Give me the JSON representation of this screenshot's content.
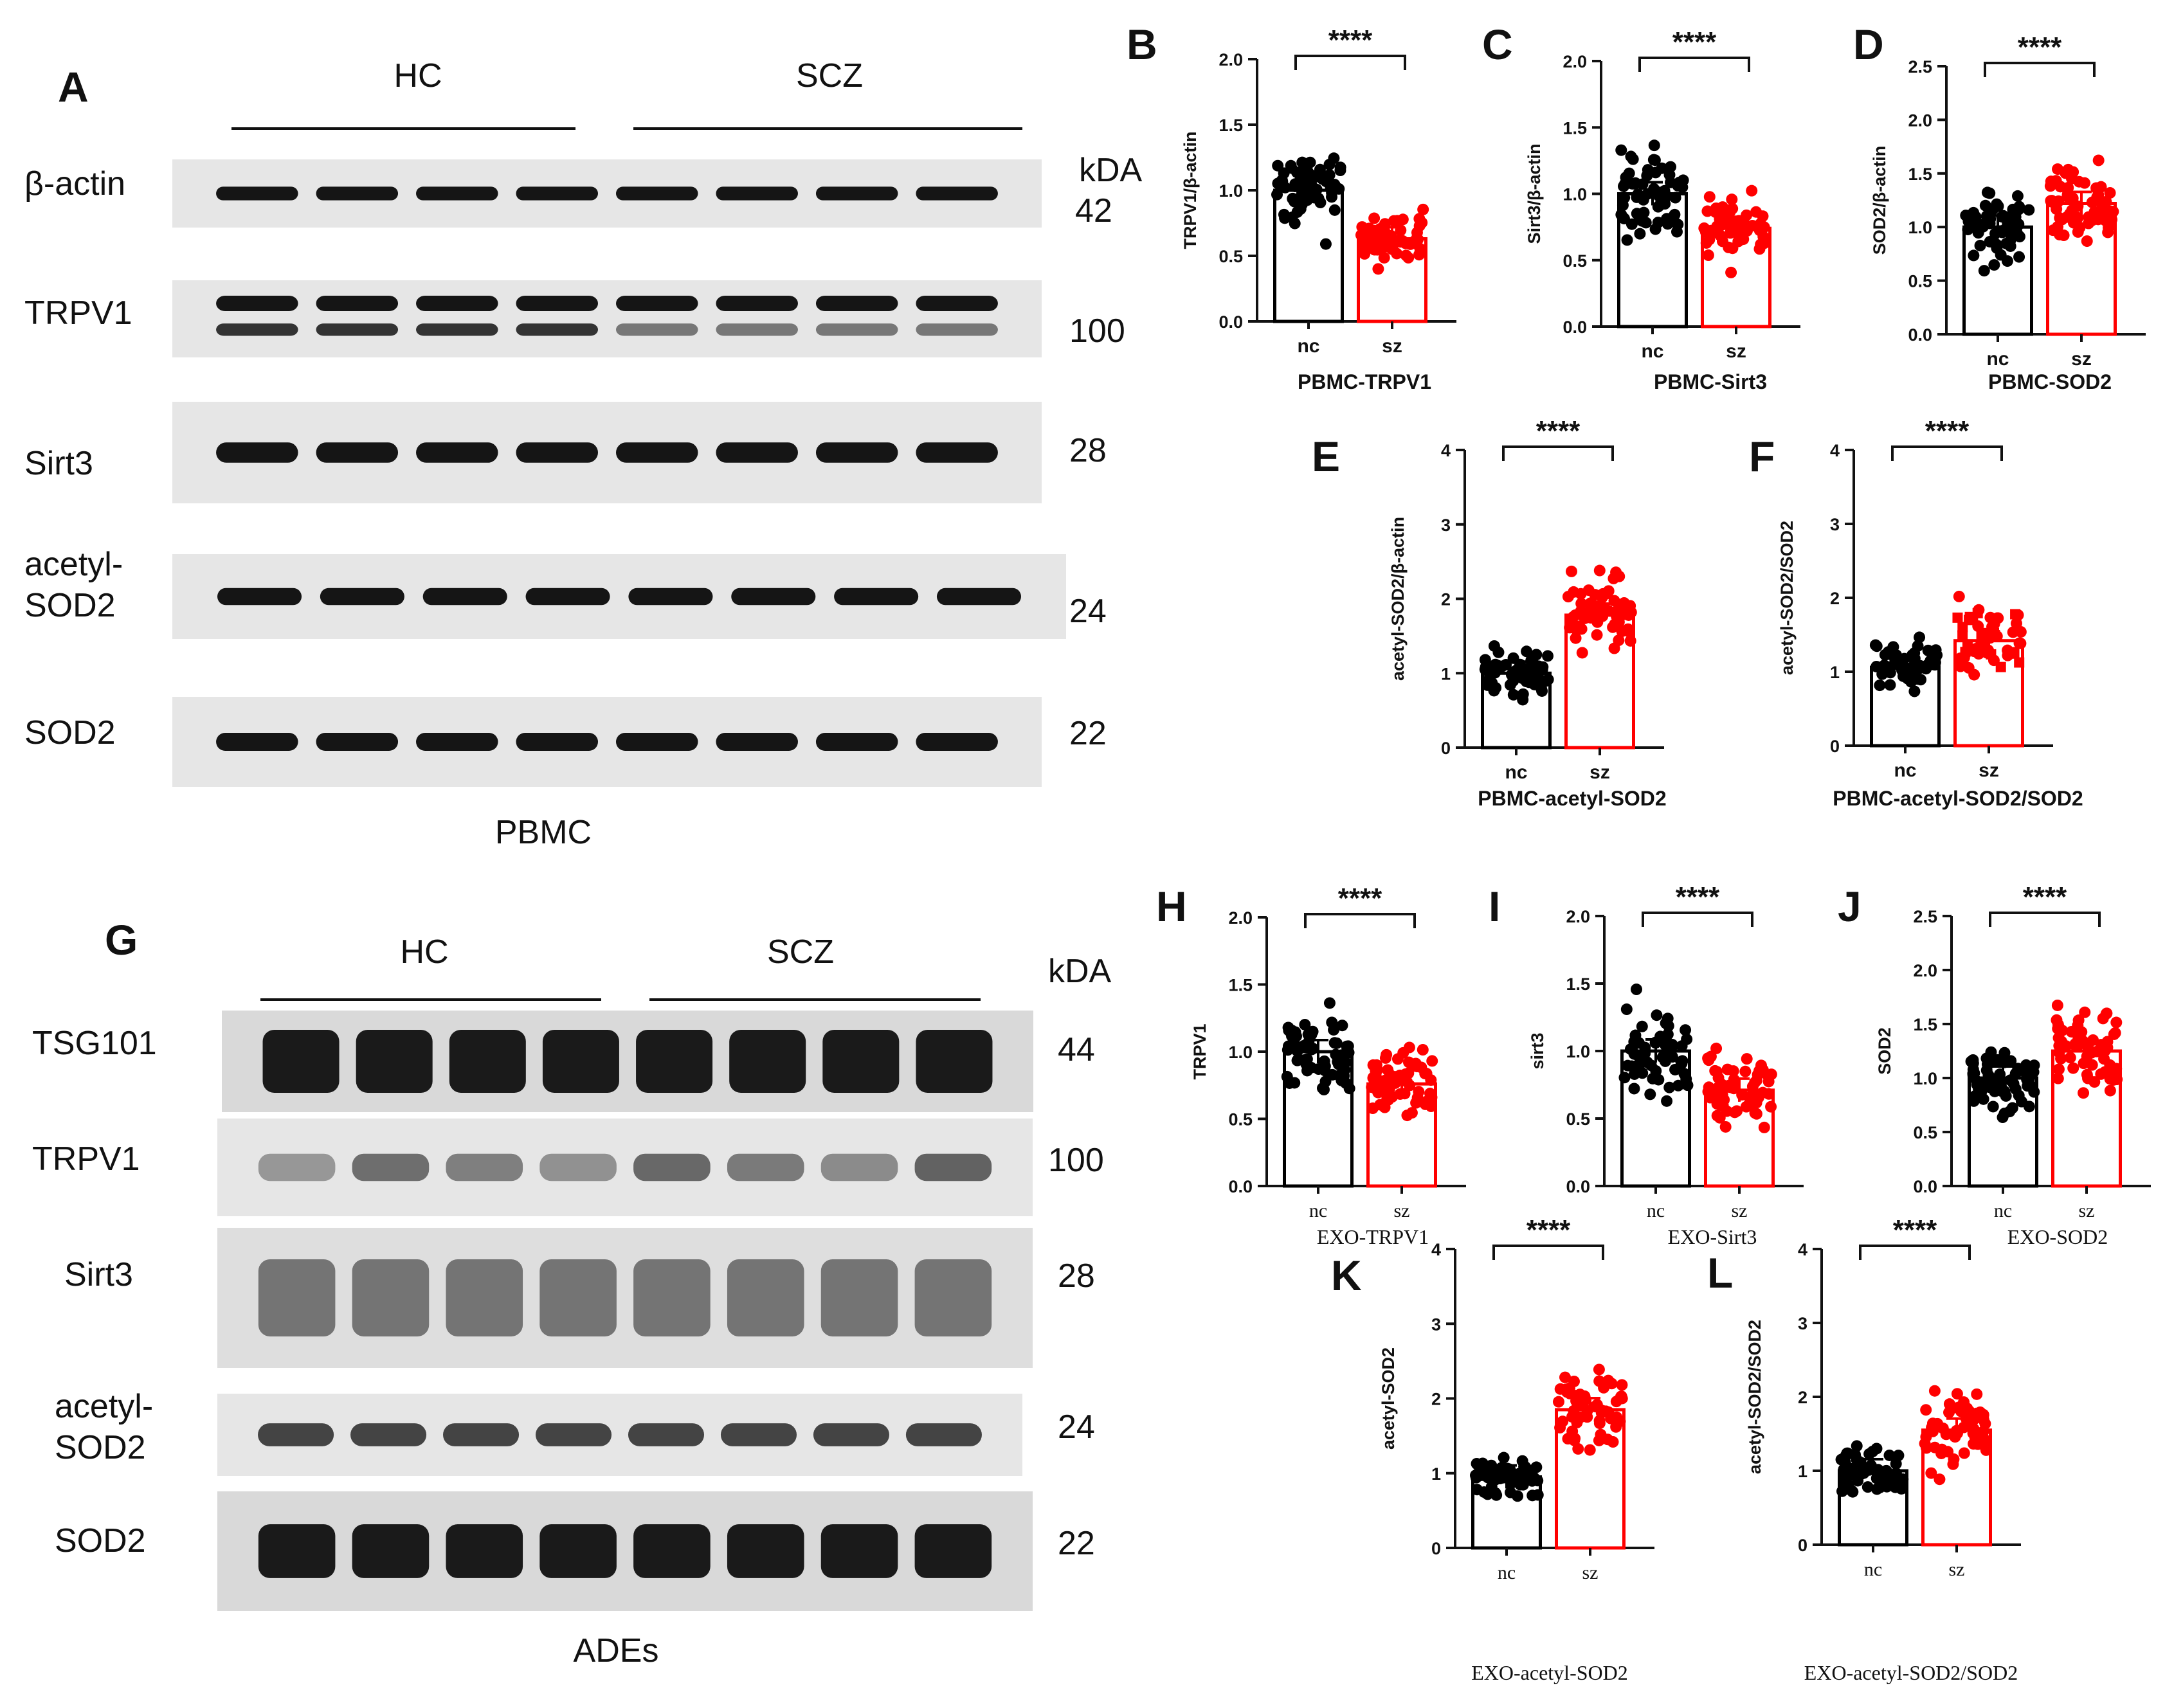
{
  "blots": [
    {
      "panel": "A",
      "groups": [
        "HC",
        "SCZ"
      ],
      "kda_header": "kDA",
      "footer": "PBMC",
      "rows": [
        {
          "protein": "β-actin",
          "kda": "42"
        },
        {
          "protein": "TRPV1",
          "kda": "100"
        },
        {
          "protein": "Sirt3",
          "kda": "28"
        },
        {
          "protein": "acetyl-\nSOD2",
          "kda": "24"
        },
        {
          "protein": "SOD2",
          "kda": "22"
        }
      ]
    },
    {
      "panel": "G",
      "groups": [
        "HC",
        "SCZ"
      ],
      "kda_header": "kDA",
      "footer": "ADEs",
      "rows": [
        {
          "protein": "TSG101",
          "kda": "44"
        },
        {
          "protein": "TRPV1",
          "kda": "100"
        },
        {
          "protein": "Sirt3",
          "kda": "28"
        },
        {
          "protein": "acetyl-\nSOD2",
          "kda": "24"
        },
        {
          "protein": "SOD2",
          "kda": "22"
        }
      ]
    }
  ],
  "chart_data": [
    {
      "panel": "B",
      "type": "bar",
      "title": "PBMC-TRPV1",
      "ylabel": "TRPV1/β-actin",
      "categories": [
        "nc",
        "sz"
      ],
      "values": [
        1.0,
        0.63
      ],
      "ylim": [
        0,
        2.0
      ],
      "yticks": [
        0.0,
        0.5,
        1.0,
        1.5,
        2.0
      ],
      "significance": "****",
      "colors": [
        "#000000",
        "#ff0000"
      ]
    },
    {
      "panel": "C",
      "type": "bar",
      "title": "PBMC-Sirt3",
      "ylabel": "Sirt3/β-actin",
      "categories": [
        "nc",
        "sz"
      ],
      "values": [
        1.0,
        0.74
      ],
      "ylim": [
        0,
        2.0
      ],
      "yticks": [
        0.0,
        0.5,
        1.0,
        1.5,
        2.0
      ],
      "significance": "****",
      "colors": [
        "#000000",
        "#ff0000"
      ]
    },
    {
      "panel": "D",
      "type": "bar",
      "title": "PBMC-SOD2",
      "ylabel": "SOD2/β-actin",
      "categories": [
        "nc",
        "sz"
      ],
      "values": [
        1.0,
        1.22
      ],
      "ylim": [
        0,
        2.5
      ],
      "yticks": [
        0.0,
        0.5,
        1.0,
        1.5,
        2.0,
        2.5
      ],
      "significance": "****",
      "colors": [
        "#000000",
        "#ff0000"
      ]
    },
    {
      "panel": "E",
      "type": "bar",
      "title": "PBMC-acetyl-SOD2",
      "ylabel": "acetyl-SOD2/β-actin",
      "categories": [
        "nc",
        "sz"
      ],
      "values": [
        1.0,
        1.78
      ],
      "ylim": [
        0,
        4
      ],
      "yticks": [
        0,
        1,
        2,
        3,
        4
      ],
      "significance": "****",
      "colors": [
        "#000000",
        "#ff0000"
      ]
    },
    {
      "panel": "F",
      "type": "bar",
      "title": "PBMC-acetyl-SOD2/SOD2",
      "ylabel": "acetyl-SOD2/SOD2",
      "categories": [
        "nc",
        "sz"
      ],
      "values": [
        1.06,
        1.42
      ],
      "ylim": [
        0,
        4
      ],
      "yticks": [
        0,
        1,
        2,
        3,
        4
      ],
      "significance": "****",
      "colors": [
        "#000000",
        "#ff0000"
      ]
    },
    {
      "panel": "H",
      "type": "bar",
      "title": "EXO-TRPV1",
      "ylabel": "TRPV1",
      "categories": [
        "nc",
        "sz"
      ],
      "values": [
        1.0,
        0.76
      ],
      "ylim": [
        0,
        2.0
      ],
      "yticks": [
        0.0,
        0.5,
        1.0,
        1.5,
        2.0
      ],
      "significance": "****",
      "colors": [
        "#000000",
        "#ff0000"
      ]
    },
    {
      "panel": "I",
      "type": "bar",
      "title": "EXO-Sirt3",
      "ylabel": "sirt3",
      "categories": [
        "nc",
        "sz"
      ],
      "values": [
        1.0,
        0.71
      ],
      "ylim": [
        0,
        2.0
      ],
      "yticks": [
        0.0,
        0.5,
        1.0,
        1.5,
        2.0
      ],
      "significance": "****",
      "colors": [
        "#000000",
        "#ff0000"
      ]
    },
    {
      "panel": "J",
      "type": "bar",
      "title": "EXO-SOD2",
      "ylabel": "SOD2",
      "categories": [
        "nc",
        "sz"
      ],
      "values": [
        1.0,
        1.25
      ],
      "ylim": [
        0,
        2.5
      ],
      "yticks": [
        0.0,
        0.5,
        1.0,
        1.5,
        2.0,
        2.5
      ],
      "significance": "****",
      "colors": [
        "#000000",
        "#ff0000"
      ]
    },
    {
      "panel": "K",
      "type": "bar",
      "title": "EXO-acetyl-SOD2",
      "ylabel": "acetyl-SOD2",
      "categories": [
        "nc",
        "sz"
      ],
      "values": [
        0.95,
        1.85
      ],
      "ylim": [
        0,
        4
      ],
      "yticks": [
        0,
        1,
        2,
        3,
        4
      ],
      "significance": "****",
      "colors": [
        "#000000",
        "#ff0000"
      ]
    },
    {
      "panel": "L",
      "type": "bar",
      "title": "EXO-acetyl-SOD2/SOD2",
      "ylabel": "acetyl-SOD2/SOD2",
      "categories": [
        "nc",
        "sz"
      ],
      "values": [
        1.0,
        1.55
      ],
      "ylim": [
        0,
        4
      ],
      "yticks": [
        0,
        1,
        2,
        3,
        4
      ],
      "significance": "****",
      "colors": [
        "#000000",
        "#ff0000"
      ]
    }
  ]
}
